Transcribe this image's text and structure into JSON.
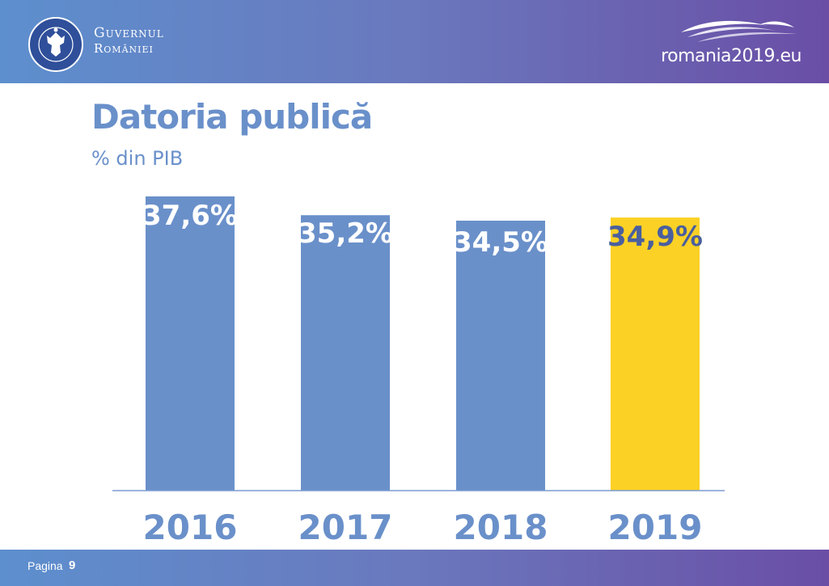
{
  "header": {
    "org_line1": "Guvernul",
    "org_line2": "României",
    "site": "romania2019.eu"
  },
  "footer": {
    "page_label": "Pagina",
    "page_number": "9"
  },
  "colors": {
    "bar_default": "#6a90ca",
    "bar_highlight": "#fcd125",
    "label_default": "#ffffff",
    "label_highlight": "#4a5f9e",
    "year_labels": "#6a90ca",
    "baseline": "#7a9cd0"
  },
  "chart_data": {
    "type": "bar",
    "title": "Datoria publică",
    "subtitle": "% din PIB",
    "categories": [
      "2016",
      "2017",
      "2018",
      "2019"
    ],
    "values": [
      37.6,
      35.2,
      34.5,
      34.9
    ],
    "data_labels": [
      "37,6%",
      "35,2%",
      "34,5%",
      "34,9%"
    ],
    "highlight_index": 3,
    "ylim": [
      0,
      37.6
    ],
    "grid": false,
    "legend": "none"
  }
}
